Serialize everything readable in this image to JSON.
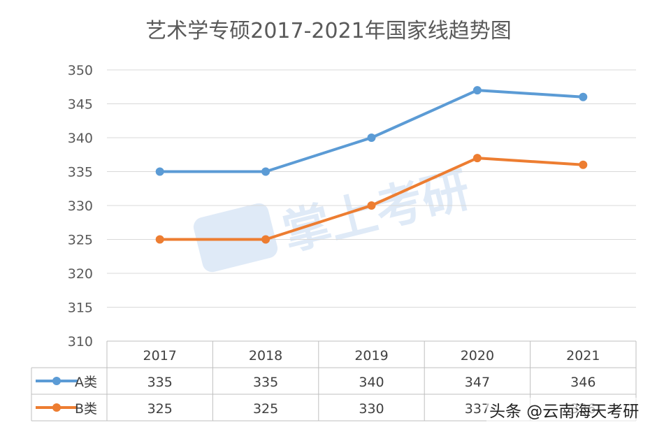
{
  "chart_data": {
    "type": "line",
    "title": "艺术学专硕2017-2021年国家线趋势图",
    "categories": [
      "2017",
      "2018",
      "2019",
      "2020",
      "2021"
    ],
    "series": [
      {
        "name": "A类",
        "values": [
          335,
          335,
          340,
          347,
          346
        ],
        "color": "#5b9bd5"
      },
      {
        "name": "B类",
        "values": [
          325,
          325,
          330,
          337,
          336
        ],
        "color": "#ed7d31"
      }
    ],
    "ylim": [
      310,
      350
    ],
    "yticks": [
      "310",
      "315",
      "320",
      "325",
      "330",
      "335",
      "340",
      "345",
      "350"
    ],
    "grid": true,
    "data_table": true,
    "legend_placement": "data-table-left"
  },
  "watermark": {
    "text": "掌上考研",
    "color": "#c5d9f1"
  },
  "credit": {
    "text": "头条 @云南海天考研"
  }
}
